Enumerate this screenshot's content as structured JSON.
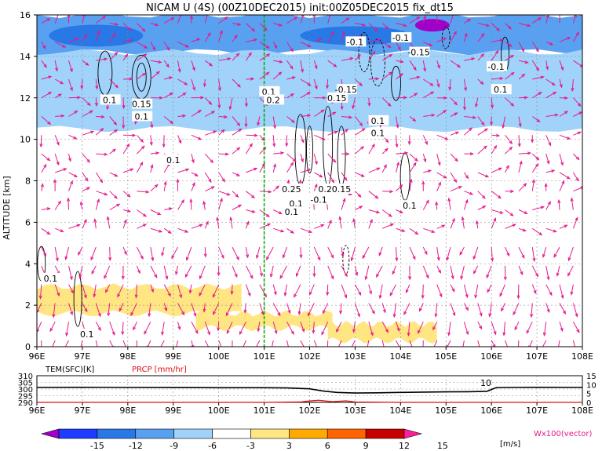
{
  "title": "NICAM U (4S) (00Z10DEC2015) init:00Z05DEC2015 fix_dt15",
  "chart_data": [
    {
      "type": "heatmap",
      "title": "NICAM U (4S) (00Z10DEC2015) init:00Z05DEC2015 fix_dt15",
      "xlabel": "",
      "ylabel": "ALTITUDE [km]",
      "xlim": [
        96,
        108
      ],
      "ylim": [
        0,
        16
      ],
      "xticks": [
        "96E",
        "97E",
        "98E",
        "99E",
        "100E",
        "101E",
        "102E",
        "103E",
        "104E",
        "105E",
        "106E",
        "107E",
        "108E"
      ],
      "yticks": [
        "0",
        "2",
        "4",
        "6",
        "8",
        "10",
        "12",
        "14",
        "16"
      ],
      "grid": true,
      "marker_line_lon": 101,
      "shading_bands": [
        {
          "level": "-9 to -6",
          "x": [
            96,
            108
          ],
          "y": [
            14.2,
            16
          ]
        },
        {
          "level": "-6 to -3",
          "x": [
            96,
            108
          ],
          "y": [
            10.5,
            14.2
          ]
        },
        {
          "level": "3 to 6",
          "x": [
            96,
            100.5
          ],
          "y": [
            1.6,
            2.9
          ]
        },
        {
          "level": "3 to 6",
          "x": [
            99.5,
            102.5
          ],
          "y": [
            0.9,
            1.6
          ]
        },
        {
          "level": "3 to 6",
          "x": [
            102.4,
            104.8
          ],
          "y": [
            0.3,
            1.1
          ]
        }
      ],
      "contour_labels": [
        "0.1",
        "0.15",
        "0.1",
        "-0.1",
        "-0.1",
        "-0.15",
        "-0.1",
        "0.1",
        "-0.15",
        "0.1",
        "0.2",
        "0.15",
        "0.1",
        "0.1",
        "0.25",
        "0.25",
        "0.15",
        "-0.1",
        "0.1",
        "0.1",
        "0.1",
        "0.1",
        "0.1",
        "0.1"
      ],
      "vector_legend": "Wx100(vector)"
    },
    {
      "type": "line",
      "series": [
        {
          "name": "TEM(SFC)[K]",
          "unit": "K",
          "x": [
            96,
            97,
            98,
            99,
            100,
            101,
            101.5,
            102,
            102.3,
            102.6,
            103,
            103.5,
            104,
            104.5,
            105,
            105.5,
            105.9,
            106.1,
            106.5,
            107,
            108
          ],
          "values": [
            301.2,
            301.3,
            301.2,
            301.1,
            301.0,
            301.0,
            300.8,
            300.2,
            298.5,
            297.5,
            297.0,
            297.2,
            297.5,
            297.7,
            297.9,
            298.0,
            298.3,
            301.0,
            301.2,
            301.3,
            301.2
          ]
        },
        {
          "name": "PRCP [mm/hr]",
          "unit": "mm/hr",
          "x": [
            96,
            97,
            98,
            99,
            100,
            101,
            101.8,
            102,
            102.2,
            102.5,
            102.8,
            103,
            104,
            105,
            106,
            107,
            108
          ],
          "values": [
            0,
            0,
            0,
            0,
            0,
            0,
            0.2,
            0.8,
            1.2,
            0.4,
            0.9,
            0.2,
            0,
            0,
            0,
            0,
            0
          ]
        }
      ],
      "left_axis_ticks": [
        "310",
        "305",
        "300",
        "295",
        "290"
      ],
      "right_axis_ticks": [
        "15",
        "10",
        "5",
        "0"
      ],
      "annotation": "10"
    }
  ],
  "colorbar": {
    "labels": [
      "-15",
      "-12",
      "-9",
      "-6",
      "-3",
      "3",
      "6",
      "9",
      "12",
      "15"
    ],
    "unit": "[m/s]",
    "colors": [
      "#a000c8",
      "#1e3cff",
      "#2878e6",
      "#5aa0f0",
      "#a0d2fa",
      "#ffffff",
      "#ffe682",
      "#ffaa00",
      "#ff6400",
      "#c80000",
      "#ff1e9a"
    ]
  },
  "colors": {
    "vector": "#e6198c",
    "contour": "#000000",
    "marker_line": "#00aa00",
    "prcp": "#e01010"
  }
}
